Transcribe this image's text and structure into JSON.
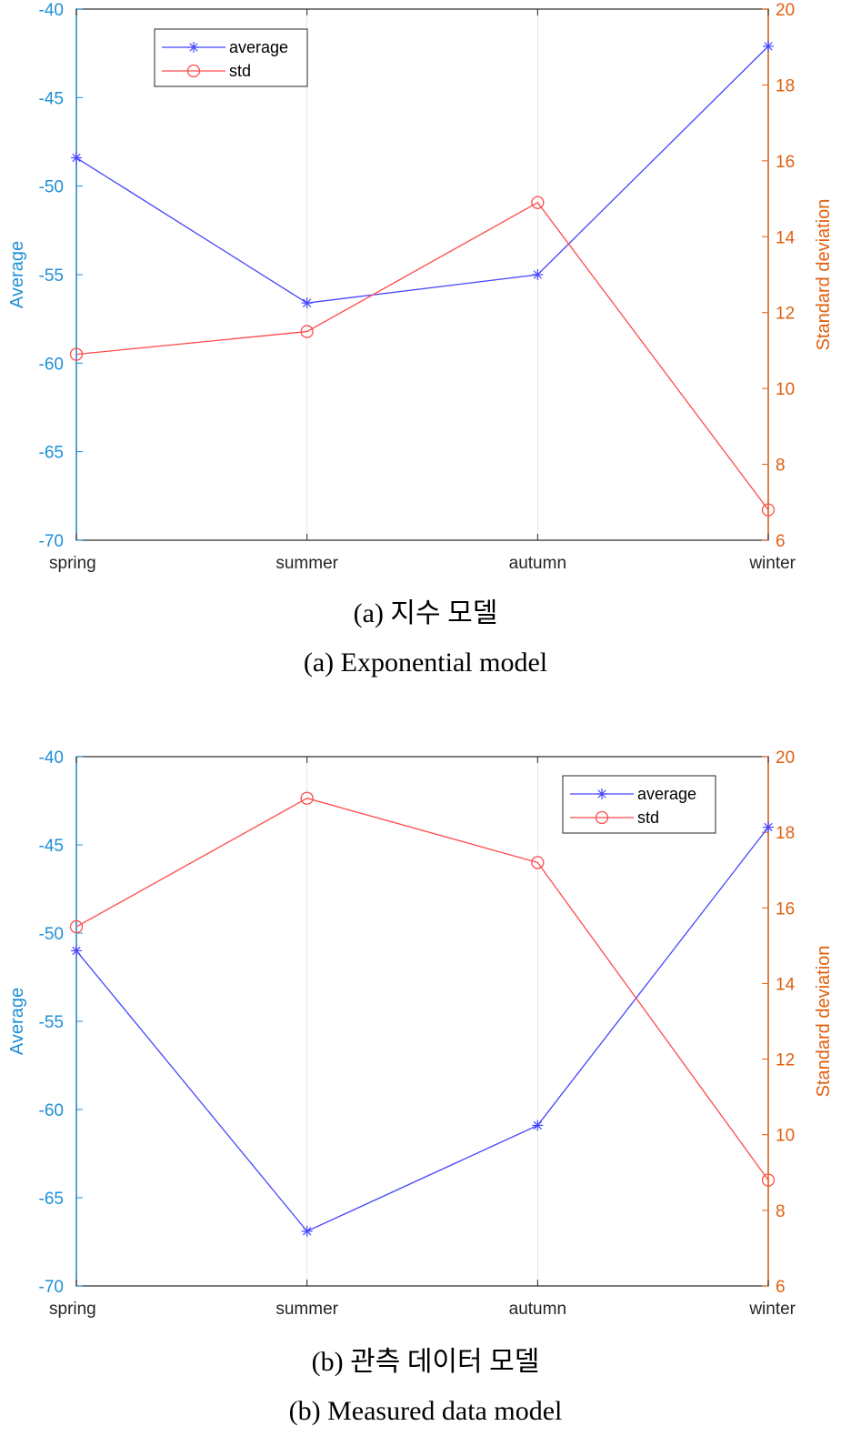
{
  "colors": {
    "left_axis": "#1f8fd6",
    "right_axis": "#e0600f",
    "average_series": "#4545ff",
    "std_series": "#ff4a4a",
    "grid": "#e6e6e6"
  },
  "chart_data": [
    {
      "type": "line",
      "categories": [
        "spring",
        "summer",
        "autumn",
        "winter"
      ],
      "ylabel": "Average",
      "ylabel_right": "Standard deviation",
      "ylim": [
        -70,
        -40
      ],
      "ylim_right": [
        6,
        20
      ],
      "yticks": [
        "-40",
        "-45",
        "-50",
        "-55",
        "-60",
        "-65",
        "-70"
      ],
      "yticks_right": [
        "20",
        "18",
        "16",
        "14",
        "12",
        "10",
        "8",
        "6"
      ],
      "grid": "x",
      "legend_position": "top-left",
      "series": [
        {
          "name": "average",
          "axis": "left",
          "marker": "asterisk",
          "values": [
            -48.4,
            -56.6,
            -55.0,
            -42.1
          ]
        },
        {
          "name": "std",
          "axis": "right",
          "marker": "circle",
          "values": [
            10.9,
            11.5,
            14.9,
            6.8
          ]
        }
      ],
      "caption_line1": "(a) 지수 모델",
      "caption_line2": "(a) Exponential model"
    },
    {
      "type": "line",
      "categories": [
        "spring",
        "summer",
        "autumn",
        "winter"
      ],
      "ylabel": "Average",
      "ylabel_right": "Standard deviation",
      "ylim": [
        -70,
        -40
      ],
      "ylim_right": [
        6,
        20
      ],
      "yticks": [
        "-40",
        "-45",
        "-50",
        "-55",
        "-60",
        "-65",
        "-70"
      ],
      "yticks_right": [
        "20",
        "18",
        "16",
        "14",
        "12",
        "10",
        "8",
        "6"
      ],
      "grid": "x",
      "legend_position": "top-right",
      "series": [
        {
          "name": "average",
          "axis": "left",
          "marker": "asterisk",
          "values": [
            -51.0,
            -66.9,
            -60.9,
            -44.0
          ]
        },
        {
          "name": "std",
          "axis": "right",
          "marker": "circle",
          "values": [
            15.5,
            18.9,
            17.2,
            8.8
          ]
        }
      ],
      "caption_line1": "(b) 관측 데이터 모델",
      "caption_line2": "(b) Measured data model"
    }
  ]
}
